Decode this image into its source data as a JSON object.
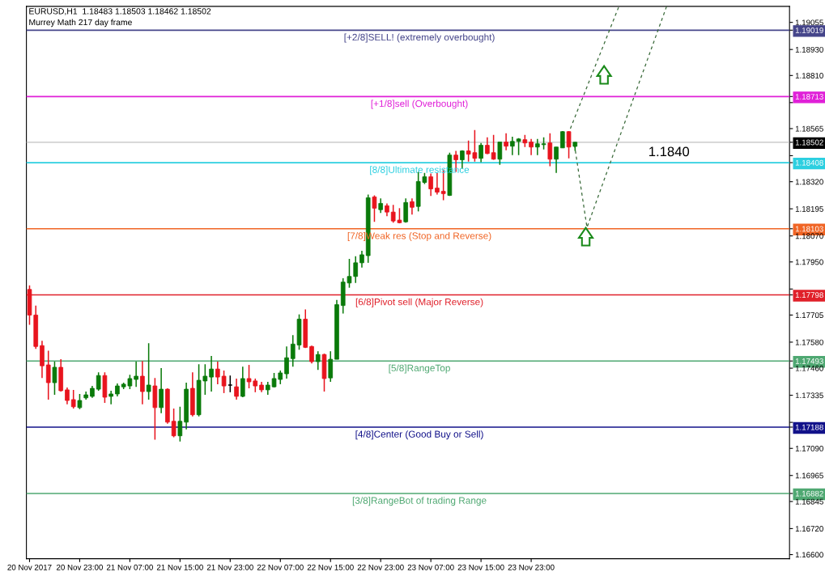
{
  "chart_data": {
    "type": "candlestick",
    "title": "EURUSD,H1  1.18483 1.18503 1.18462 1.18502",
    "subtitle": "Murrey Math 217 day frame",
    "x": [
      "2017-11-20T15:00",
      "2017-11-20T16:00",
      "2017-11-20T17:00",
      "2017-11-20T18:00",
      "2017-11-20T19:00",
      "2017-11-20T20:00",
      "2017-11-20T21:00",
      "2017-11-20T22:00",
      "2017-11-20T23:00",
      "2017-11-21T00:00",
      "2017-11-21T01:00",
      "2017-11-21T02:00",
      "2017-11-21T03:00",
      "2017-11-21T04:00",
      "2017-11-21T05:00",
      "2017-11-21T06:00",
      "2017-11-21T07:00",
      "2017-11-21T08:00",
      "2017-11-21T09:00",
      "2017-11-21T10:00",
      "2017-11-21T11:00",
      "2017-11-21T12:00",
      "2017-11-21T13:00",
      "2017-11-21T14:00",
      "2017-11-21T15:00",
      "2017-11-21T16:00",
      "2017-11-21T17:00",
      "2017-11-21T18:00",
      "2017-11-21T19:00",
      "2017-11-21T20:00",
      "2017-11-21T21:00",
      "2017-11-21T22:00",
      "2017-11-21T23:00",
      "2017-11-22T00:00",
      "2017-11-22T01:00",
      "2017-11-22T02:00",
      "2017-11-22T03:00",
      "2017-11-22T04:00",
      "2017-11-22T05:00",
      "2017-11-22T06:00",
      "2017-11-22T07:00",
      "2017-11-22T08:00",
      "2017-11-22T09:00",
      "2017-11-22T10:00",
      "2017-11-22T11:00",
      "2017-11-22T12:00",
      "2017-11-22T13:00",
      "2017-11-22T14:00",
      "2017-11-22T15:00",
      "2017-11-22T16:00",
      "2017-11-22T17:00",
      "2017-11-22T18:00",
      "2017-11-22T19:00",
      "2017-11-22T20:00",
      "2017-11-22T21:00",
      "2017-11-22T22:00",
      "2017-11-22T23:00",
      "2017-11-23T00:00",
      "2017-11-23T01:00",
      "2017-11-23T02:00",
      "2017-11-23T03:00",
      "2017-11-23T04:00",
      "2017-11-23T05:00",
      "2017-11-23T06:00",
      "2017-11-23T07:00",
      "2017-11-23T08:00",
      "2017-11-23T09:00",
      "2017-11-23T10:00",
      "2017-11-23T11:00",
      "2017-11-23T12:00",
      "2017-11-23T13:00",
      "2017-11-23T14:00",
      "2017-11-23T15:00",
      "2017-11-23T16:00",
      "2017-11-23T17:00",
      "2017-11-23T18:00",
      "2017-11-23T19:00",
      "2017-11-23T20:00",
      "2017-11-23T21:00",
      "2017-11-23T22:00",
      "2017-11-23T23:00",
      "2017-11-24T00:00",
      "2017-11-24T01:00",
      "2017-11-24T02:00",
      "2017-11-24T03:00",
      "2017-11-24T04:00",
      "2017-11-24T05:00",
      "2017-11-24T06:00"
    ],
    "ohlc": [
      [
        1.17823,
        1.17842,
        1.1766,
        1.17705
      ],
      [
        1.17705,
        1.17749,
        1.17549,
        1.1756
      ],
      [
        1.17564,
        1.17586,
        1.17415,
        1.17471
      ],
      [
        1.17475,
        1.17541,
        1.17315,
        1.17393
      ],
      [
        1.17393,
        1.1749,
        1.17337,
        1.17464
      ],
      [
        1.17464,
        1.17501,
        1.17352,
        1.17356
      ],
      [
        1.1736,
        1.17371,
        1.17293,
        1.17311
      ],
      [
        1.17315,
        1.1736,
        1.17274,
        1.17282
      ],
      [
        1.17278,
        1.17341,
        1.17271,
        1.17311
      ],
      [
        1.17323,
        1.17352,
        1.17315,
        1.17337
      ],
      [
        1.1733,
        1.17378,
        1.17323,
        1.17367
      ],
      [
        1.17363,
        1.17441,
        1.17356,
        1.17426
      ],
      [
        1.17426,
        1.17441,
        1.173,
        1.17326
      ],
      [
        1.1733,
        1.17356,
        1.17293,
        1.17341
      ],
      [
        1.17341,
        1.17389,
        1.1733,
        1.17378
      ],
      [
        1.17374,
        1.17393,
        1.17363,
        1.17386
      ],
      [
        1.17378,
        1.1743,
        1.17363,
        1.17412
      ],
      [
        1.17408,
        1.1749,
        1.17374,
        1.17423
      ],
      [
        1.17423,
        1.17493,
        1.17293,
        1.17352
      ],
      [
        1.17352,
        1.17575,
        1.17315,
        1.17382
      ],
      [
        1.17378,
        1.17415,
        1.1713,
        1.17278
      ],
      [
        1.17278,
        1.1746,
        1.17252,
        1.17363
      ],
      [
        1.17363,
        1.17367,
        1.17204,
        1.17211
      ],
      [
        1.17215,
        1.17274,
        1.17141,
        1.17148
      ],
      [
        1.17148,
        1.17282,
        1.17122,
        1.17215
      ],
      [
        1.17211,
        1.17393,
        1.17178,
        1.17363
      ],
      [
        1.17367,
        1.17441,
        1.17237,
        1.17245
      ],
      [
        1.17245,
        1.17478,
        1.17237,
        1.17404
      ],
      [
        1.17401,
        1.17478,
        1.17337,
        1.17423
      ],
      [
        1.17419,
        1.17516,
        1.17352,
        1.17456
      ],
      [
        1.17456,
        1.1749,
        1.17386,
        1.17419
      ],
      [
        1.17423,
        1.17449,
        1.17345,
        1.17378
      ],
      [
        1.17382,
        1.17426,
        1.17349,
        1.17382
      ],
      [
        1.17374,
        1.17412,
        1.17315,
        1.1733
      ],
      [
        1.1733,
        1.17467,
        1.17326,
        1.17412
      ],
      [
        1.17412,
        1.17475,
        1.17367,
        1.17397
      ],
      [
        1.17401,
        1.17412,
        1.17349,
        1.17378
      ],
      [
        1.17382,
        1.17397,
        1.17349,
        1.1736
      ],
      [
        1.1736,
        1.17397,
        1.17337,
        1.17382
      ],
      [
        1.17374,
        1.17438,
        1.17371,
        1.17412
      ],
      [
        1.17408,
        1.17449,
        1.17386,
        1.17438
      ],
      [
        1.17434,
        1.1756,
        1.17412,
        1.17508
      ],
      [
        1.17504,
        1.17612,
        1.17467,
        1.17571
      ],
      [
        1.17567,
        1.17708,
        1.17545,
        1.17686
      ],
      [
        1.17686,
        1.17731,
        1.17553,
        1.17556
      ],
      [
        1.1756,
        1.17564,
        1.17482,
        1.1749
      ],
      [
        1.1749,
        1.17538,
        1.17452,
        1.17523
      ],
      [
        1.17523,
        1.17527,
        1.17352,
        1.17412
      ],
      [
        1.17415,
        1.17538,
        1.17397,
        1.17501
      ],
      [
        1.17501,
        1.17775,
        1.17501,
        1.17753
      ],
      [
        1.17749,
        1.17875,
        1.17712,
        1.17857
      ],
      [
        1.17853,
        1.17964,
        1.17831,
        1.17883
      ],
      [
        1.17883,
        1.17976,
        1.17853,
        1.17946
      ],
      [
        1.17946,
        1.18001,
        1.17924,
        1.17983
      ],
      [
        1.17979,
        1.18261,
        1.17946,
        1.18246
      ],
      [
        1.1825,
        1.18257,
        1.18135,
        1.18198
      ],
      [
        1.18191,
        1.18243,
        1.18176,
        1.1822
      ],
      [
        1.18209,
        1.1822,
        1.18161,
        1.1818
      ],
      [
        1.1818,
        1.18213,
        1.18131,
        1.18139
      ],
      [
        1.18143,
        1.18198,
        1.18128,
        1.18131
      ],
      [
        1.18135,
        1.18243,
        1.18131,
        1.18224
      ],
      [
        1.18228,
        1.18243,
        1.18168,
        1.18202
      ],
      [
        1.18206,
        1.18365,
        1.18183,
        1.18321
      ],
      [
        1.18317,
        1.18361,
        1.18309,
        1.18343
      ],
      [
        1.18343,
        1.18358,
        1.18254,
        1.18287
      ],
      [
        1.18291,
        1.18361,
        1.18261,
        1.18272
      ],
      [
        1.18276,
        1.18376,
        1.18235,
        1.18265
      ],
      [
        1.18257,
        1.18454,
        1.18254,
        1.18443
      ],
      [
        1.18443,
        1.18462,
        1.18365,
        1.18421
      ],
      [
        1.18421,
        1.18465,
        1.1838,
        1.18462
      ],
      [
        1.18462,
        1.1851,
        1.18413,
        1.18447
      ],
      [
        1.18454,
        1.18558,
        1.18413,
        1.18428
      ],
      [
        1.18428,
        1.18499,
        1.1841,
        1.18488
      ],
      [
        1.18488,
        1.18525,
        1.18447,
        1.1845
      ],
      [
        1.18454,
        1.18536,
        1.18421,
        1.18424
      ],
      [
        1.18424,
        1.18503,
        1.18398,
        1.18503
      ],
      [
        1.18503,
        1.18543,
        1.18465,
        1.18484
      ],
      [
        1.18484,
        1.18528,
        1.18443,
        1.18506
      ],
      [
        1.18506,
        1.18521,
        1.18443,
        1.18517
      ],
      [
        1.18514,
        1.18536,
        1.1848,
        1.18499
      ],
      [
        1.18503,
        1.18517,
        1.18443,
        1.1848
      ],
      [
        1.1848,
        1.18517,
        1.18443,
        1.18495
      ],
      [
        1.18491,
        1.18525,
        1.18469,
        1.18495
      ],
      [
        1.18499,
        1.18543,
        1.18391,
        1.18424
      ],
      [
        1.18424,
        1.1848,
        1.18361,
        1.1848
      ],
      [
        1.18476,
        1.18554,
        1.18476,
        1.18551
      ],
      [
        1.18551,
        1.18554,
        1.18428,
        1.1848
      ],
      [
        1.18483,
        1.18503,
        1.18462,
        1.18502
      ]
    ],
    "colors": [
      "#e8141e",
      "#e8141e",
      "#e8141e",
      "#e8141e",
      "#0a7a0a",
      "#e8141e",
      "#e8141e",
      "#e8141e",
      "#0a7a0a",
      "#0a7a0a",
      "#0a7a0a",
      "#0a7a0a",
      "#e8141e",
      "#0a7a0a",
      "#0a7a0a",
      "#0a7a0a",
      "#0a7a0a",
      "#0a7a0a",
      "#e8141e",
      "#0a7a0a",
      "#e8141e",
      "#0a7a0a",
      "#e8141e",
      "#e8141e",
      "#0a7a0a",
      "#0a7a0a",
      "#e8141e",
      "#0a7a0a",
      "#0a7a0a",
      "#0a7a0a",
      "#e8141e",
      "#e8141e",
      "#000000",
      "#e8141e",
      "#0a7a0a",
      "#e8141e",
      "#e8141e",
      "#e8141e",
      "#0a7a0a",
      "#0a7a0a",
      "#0a7a0a",
      "#0a7a0a",
      "#0a7a0a",
      "#0a7a0a",
      "#e8141e",
      "#e8141e",
      "#0a7a0a",
      "#e8141e",
      "#0a7a0a",
      "#0a7a0a",
      "#0a7a0a",
      "#0a7a0a",
      "#0a7a0a",
      "#0a7a0a",
      "#0a7a0a",
      "#e8141e",
      "#0a7a0a",
      "#e8141e",
      "#e8141e",
      "#e8141e",
      "#0a7a0a",
      "#e8141e",
      "#0a7a0a",
      "#0a7a0a",
      "#e8141e",
      "#e8141e",
      "#e8141e",
      "#0a7a0a",
      "#e8141e",
      "#0a7a0a",
      "#e8141e",
      "#e8141e",
      "#0a7a0a",
      "#e8141e",
      "#e8141e",
      "#0a7a0a",
      "#e8141e",
      "#0a7a0a",
      "#0a7a0a",
      "#e8141e",
      "#e8141e",
      "#0a7a0a",
      "#0a7a0a",
      "#e8141e",
      "#0a7a0a",
      "#0a7a0a",
      "#e8141e",
      "#0a7a0a"
    ],
    "series": [
      {
        "type": "line",
        "color": "#3a6a3a",
        "line_style": "dashed",
        "x": [
          "2017-11-24T05:54",
          "2017-11-24T07:54",
          "2017-11-24T20:36"
        ],
        "values": [
          1.18491,
          1.18109,
          1.19129
        ]
      },
      {
        "type": "line",
        "color": "#3a6a3a",
        "line_style": "dashed",
        "x": [
          "2017-11-24T05:15",
          "2017-11-24T13:00"
        ],
        "values": [
          1.18565,
          1.19129
        ]
      }
    ],
    "xlim": [
      "2017-11-20T14:30",
      "2017-11-25T16:12"
    ],
    "xticks": [
      {
        "value": "2017-11-20T15:00",
        "label": "20 Nov 2017"
      },
      {
        "value": "2017-11-20T23:00",
        "label": "20 Nov 23:00"
      },
      {
        "value": "2017-11-21T07:00",
        "label": "21 Nov 07:00"
      },
      {
        "value": "2017-11-21T15:00",
        "label": "21 Nov 15:00"
      },
      {
        "value": "2017-11-21T23:00",
        "label": "21 Nov 23:00"
      },
      {
        "value": "2017-11-22T07:00",
        "label": "22 Nov 07:00"
      },
      {
        "value": "2017-11-22T15:00",
        "label": "22 Nov 15:00"
      },
      {
        "value": "2017-11-22T23:00",
        "label": "22 Nov 23:00"
      },
      {
        "value": "2017-11-23T07:00",
        "label": "23 Nov 07:00"
      },
      {
        "value": "2017-11-23T15:00",
        "label": "23 Nov 15:00"
      },
      {
        "value": "2017-11-23T23:00",
        "label": "23 Nov 23:00"
      }
    ],
    "ylim": [
      1.16581,
      1.19129
    ],
    "yticks": [
      {
        "value": 1.19055,
        "label": "1.19055"
      },
      {
        "value": 1.19019,
        "label": "1.19019"
      },
      {
        "value": 1.1893,
        "label": "1.18930"
      },
      {
        "value": 1.1881,
        "label": "1.18810"
      },
      {
        "value": 1.18713,
        "label": "1.18713"
      },
      {
        "value": 1.18685,
        "label": null
      },
      {
        "value": 1.18565,
        "label": "1.18565"
      },
      {
        "value": 1.18502,
        "label": "1.18502"
      },
      {
        "value": 1.1844,
        "label": null
      },
      {
        "value": 1.18408,
        "label": "1.18408"
      },
      {
        "value": 1.1832,
        "label": "1.18320"
      },
      {
        "value": 1.18195,
        "label": "1.18195"
      },
      {
        "value": 1.18103,
        "label": "1.18103"
      },
      {
        "value": 1.1807,
        "label": "1.18070"
      },
      {
        "value": 1.1795,
        "label": "1.17950"
      },
      {
        "value": 1.17825,
        "label": null
      },
      {
        "value": 1.17798,
        "label": "1.17798"
      },
      {
        "value": 1.17705,
        "label": "1.17705"
      },
      {
        "value": 1.1758,
        "label": "1.17580"
      },
      {
        "value": 1.17493,
        "label": "1.17493"
      },
      {
        "value": 1.1746,
        "label": "1.17460"
      },
      {
        "value": 1.17335,
        "label": "1.17335"
      },
      {
        "value": 1.1721,
        "label": null
      },
      {
        "value": 1.17188,
        "label": "1.17188"
      },
      {
        "value": 1.1709,
        "label": "1.17090"
      },
      {
        "value": 1.16965,
        "label": "1.16965"
      },
      {
        "value": 1.16882,
        "label": "1.16882"
      },
      {
        "value": 1.16845,
        "label": "1.16845"
      },
      {
        "value": 1.1672,
        "label": "1.16720"
      },
      {
        "value": 1.166,
        "label": "1.16600"
      }
    ],
    "ref_lines": [
      {
        "axis": "y",
        "value": 1.19019,
        "label": "[+2/8]SELL! (extremely overbought)",
        "color": "#45458a"
      },
      {
        "axis": "y",
        "value": 1.18713,
        "label": "[+1/8]sell (Overbought)",
        "color": "#e020d8"
      },
      {
        "axis": "y",
        "value": 1.18502,
        "label": null,
        "color": "#c0c0c0"
      },
      {
        "axis": "y",
        "value": 1.18408,
        "label": "[8/8]Ultimate resistance",
        "color": "#2ccfe0"
      },
      {
        "axis": "y",
        "value": 1.18103,
        "label": "[7/8]Weak res (Stop and Reverse)",
        "color": "#f06424"
      },
      {
        "axis": "y",
        "value": 1.17798,
        "label": "[6/8]Pivot sell (Major Reverse)",
        "color": "#e0202a"
      },
      {
        "axis": "y",
        "value": 1.17493,
        "label": "[5/8]RangeTop",
        "color": "#4fa872"
      },
      {
        "axis": "y",
        "value": 1.17188,
        "label": "[4/8]Center (Good Buy or Sell)",
        "color": "#12128a"
      },
      {
        "axis": "y",
        "value": 1.16882,
        "label": "[3/8]RangeBot of trading Range",
        "color": "#4fa872"
      }
    ],
    "annotations": [
      "1.1840"
    ],
    "grid": false,
    "legend": false
  }
}
